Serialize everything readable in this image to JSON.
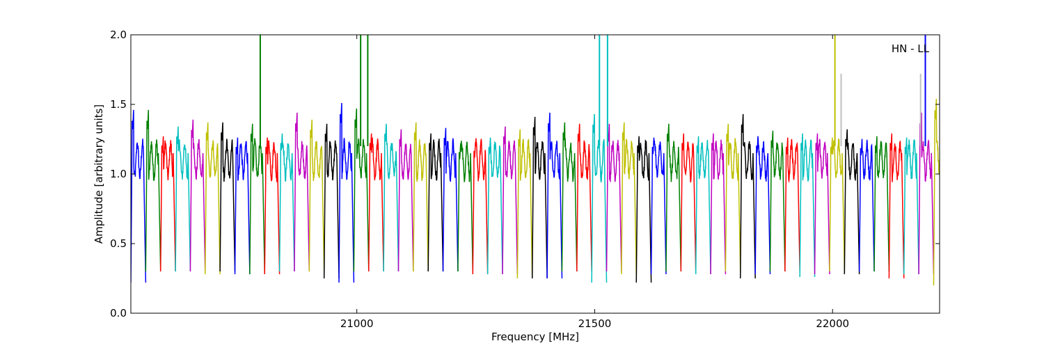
{
  "chart_data": {
    "type": "line",
    "xlabel": "Frequency [MHz]",
    "ylabel": "Amplitude [arbitrary units]",
    "annotation": "HN - LL",
    "legend": "none",
    "grid": false,
    "xlim": [
      20525,
      22225
    ],
    "ylim": [
      0.0,
      2.0
    ],
    "xticks": [
      21000,
      21500,
      22000
    ],
    "xtick_labels": [
      "21000",
      "21500",
      "22000"
    ],
    "yticks": [
      0.0,
      0.5,
      1.0,
      1.5,
      2.0
    ],
    "ytick_labels": [
      "0.0",
      "0.5",
      "1.0",
      "1.5",
      "2.0"
    ],
    "color_cycle": [
      "#0000ff",
      "#008000",
      "#ff0000",
      "#00bfbf",
      "#bf00bf",
      "#bfbf00",
      "#000000"
    ],
    "background_color": "#c0c0c0",
    "segment_width_mhz": 31.25,
    "segment_peaks": [
      1.47,
      1.47,
      1.28,
      1.35,
      1.4,
      1.38,
      1.38,
      1.27,
      1.37,
      1.27,
      1.3,
      1.45,
      1.4,
      1.37,
      1.52,
      1.48,
      1.3,
      1.37,
      1.33,
      1.38,
      1.3,
      1.34,
      1.23,
      1.24,
      1.27,
      1.35,
      1.33,
      1.42,
      1.45,
      1.38,
      1.37,
      1.44,
      1.37,
      1.38,
      1.28,
      1.27,
      1.37,
      1.3,
      1.28,
      1.3,
      1.37,
      1.44,
      1.28,
      1.32,
      1.27,
      1.3,
      1.3,
      1.27,
      1.33,
      1.26,
      1.28,
      1.3,
      1.27,
      1.45,
      1.55
    ],
    "segment_troughs": [
      0.22,
      0.3,
      0.3,
      0.3,
      0.3,
      0.28,
      0.3,
      0.28,
      0.28,
      0.28,
      0.3,
      0.3,
      0.3,
      0.25,
      0.22,
      0.3,
      0.3,
      0.3,
      0.3,
      0.3,
      0.3,
      0.3,
      0.3,
      0.28,
      0.28,
      0.28,
      0.25,
      0.25,
      0.25,
      0.3,
      0.3,
      0.22,
      0.3,
      0.28,
      0.22,
      0.28,
      0.3,
      0.3,
      0.28,
      0.28,
      0.3,
      0.25,
      0.28,
      0.3,
      0.3,
      0.26,
      0.28,
      0.3,
      0.28,
      0.3,
      0.3,
      0.25,
      0.28,
      0.28,
      0.2
    ],
    "spikes": [
      {
        "x": 20797,
        "y": 2.0,
        "color": "#008000"
      },
      {
        "x": 21008,
        "y": 2.0,
        "color": "#008000"
      },
      {
        "x": 21023,
        "y": 2.0,
        "color": "#008000"
      },
      {
        "x": 21510,
        "y": 2.0,
        "color": "#00bfbf"
      },
      {
        "x": 21527,
        "y": 2.0,
        "color": "#00bfbf"
      },
      {
        "x": 22005,
        "y": 2.0,
        "color": "#bfbf00"
      },
      {
        "x": 22018,
        "y": 1.72,
        "color": "#c0c0c0"
      },
      {
        "x": 22195,
        "y": 2.0,
        "color": "#0000ff"
      },
      {
        "x": 22185,
        "y": 1.72,
        "color": "#c0c0c0"
      }
    ]
  }
}
